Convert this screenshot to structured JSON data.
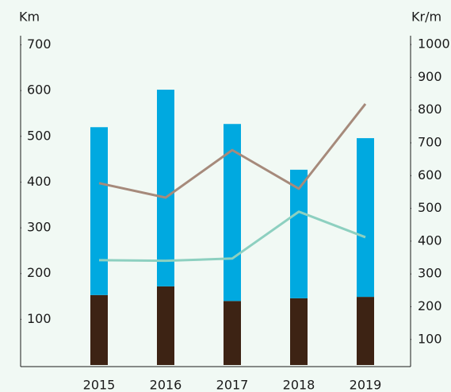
{
  "chart_data": {
    "type": "bar",
    "y_label": "Km",
    "y2_label": "Kr/m",
    "categories": [
      "2015",
      "2016",
      "2017",
      "2018",
      "2019"
    ],
    "series": [
      {
        "color": "#3d2314",
        "values": [
          153,
          172,
          140,
          146,
          149
        ]
      },
      {
        "color": "#00a9e0",
        "values": [
          367,
          430,
          387,
          281,
          347
        ]
      },
      {
        "type": "line",
        "axis": "y2",
        "color": "#a68a7b",
        "values": [
          577,
          533,
          678,
          560,
          819
        ]
      },
      {
        "type": "line",
        "axis": "y2",
        "color": "#8dd0c0",
        "values": [
          342,
          340,
          347,
          490,
          412
        ]
      }
    ],
    "ylim": [
      0,
      720
    ],
    "yticks": [
      100,
      200,
      300,
      400,
      500,
      600,
      700
    ],
    "y2lim": [
      22,
      1027
    ],
    "y2ticks": [
      100,
      200,
      300,
      400,
      500,
      600,
      700,
      800,
      900,
      1000
    ]
  }
}
